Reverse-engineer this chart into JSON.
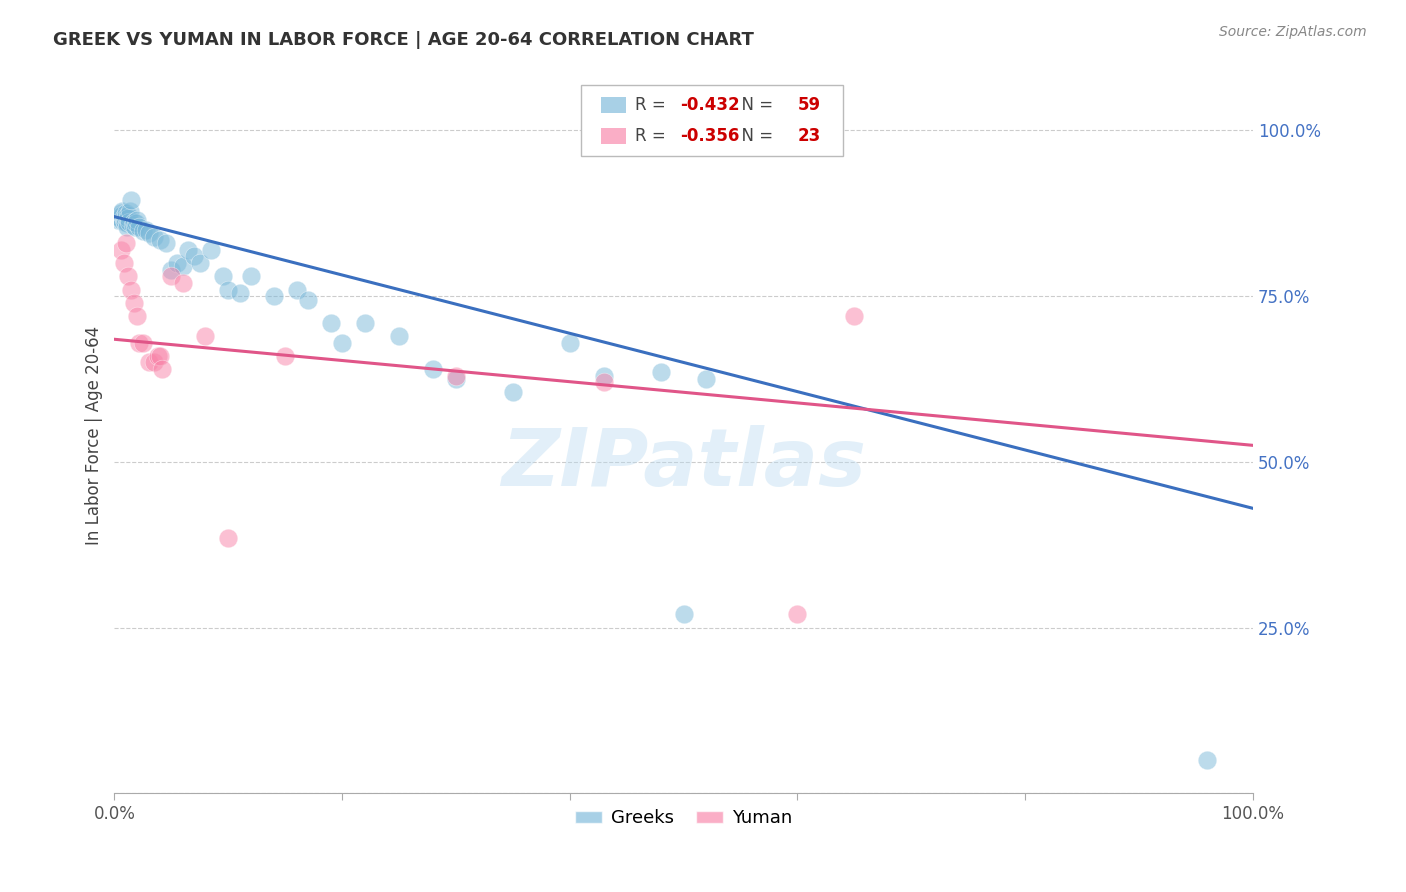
{
  "title": "GREEK VS YUMAN IN LABOR FORCE | AGE 20-64 CORRELATION CHART",
  "source": "Source: ZipAtlas.com",
  "ylabel": "In Labor Force | Age 20-64",
  "y_ticks": [
    0.0,
    0.25,
    0.5,
    0.75,
    1.0
  ],
  "y_tick_labels": [
    "",
    "25.0%",
    "50.0%",
    "75.0%",
    "100.0%"
  ],
  "x_range": [
    0.0,
    1.0
  ],
  "y_range": [
    0.0,
    1.08
  ],
  "greek_R": -0.432,
  "greek_N": 59,
  "yuman_R": -0.356,
  "yuman_N": 23,
  "greek_color": "#7ab8d9",
  "yuman_color": "#f883a8",
  "greek_line_color": "#3a6fbf",
  "yuman_line_color": "#e05588",
  "watermark": "ZIPatlas",
  "greek_line_x0": 0.0,
  "greek_line_y0": 0.87,
  "greek_line_x1": 1.0,
  "greek_line_y1": 0.43,
  "yuman_line_x0": 0.0,
  "yuman_line_y0": 0.685,
  "yuman_line_x1": 1.0,
  "yuman_line_y1": 0.525,
  "greek_x": [
    0.003,
    0.004,
    0.005,
    0.006,
    0.006,
    0.007,
    0.007,
    0.008,
    0.008,
    0.009,
    0.009,
    0.01,
    0.01,
    0.011,
    0.011,
    0.012,
    0.012,
    0.013,
    0.014,
    0.015,
    0.016,
    0.017,
    0.018,
    0.019,
    0.02,
    0.022,
    0.025,
    0.028,
    0.03,
    0.035,
    0.04,
    0.045,
    0.05,
    0.055,
    0.06,
    0.065,
    0.07,
    0.075,
    0.085,
    0.095,
    0.1,
    0.11,
    0.12,
    0.14,
    0.16,
    0.17,
    0.19,
    0.2,
    0.22,
    0.25,
    0.28,
    0.3,
    0.35,
    0.4,
    0.43,
    0.48,
    0.5,
    0.52,
    0.96
  ],
  "greek_y": [
    0.865,
    0.87,
    0.868,
    0.865,
    0.875,
    0.872,
    0.878,
    0.865,
    0.87,
    0.868,
    0.862,
    0.87,
    0.875,
    0.86,
    0.855,
    0.872,
    0.868,
    0.862,
    0.878,
    0.895,
    0.858,
    0.862,
    0.855,
    0.86,
    0.865,
    0.855,
    0.848,
    0.85,
    0.845,
    0.84,
    0.835,
    0.83,
    0.79,
    0.8,
    0.795,
    0.82,
    0.81,
    0.8,
    0.82,
    0.78,
    0.76,
    0.755,
    0.78,
    0.75,
    0.76,
    0.745,
    0.71,
    0.68,
    0.71,
    0.69,
    0.64,
    0.625,
    0.605,
    0.68,
    0.63,
    0.635,
    0.27,
    0.625,
    0.05
  ],
  "yuman_x": [
    0.006,
    0.008,
    0.01,
    0.012,
    0.015,
    0.017,
    0.02,
    0.022,
    0.025,
    0.03,
    0.035,
    0.038,
    0.04,
    0.042,
    0.05,
    0.06,
    0.08,
    0.1,
    0.15,
    0.3,
    0.43,
    0.6,
    0.65
  ],
  "yuman_y": [
    0.82,
    0.8,
    0.83,
    0.78,
    0.76,
    0.74,
    0.72,
    0.68,
    0.68,
    0.65,
    0.65,
    0.66,
    0.66,
    0.64,
    0.78,
    0.77,
    0.69,
    0.385,
    0.66,
    0.63,
    0.62,
    0.27,
    0.72
  ]
}
